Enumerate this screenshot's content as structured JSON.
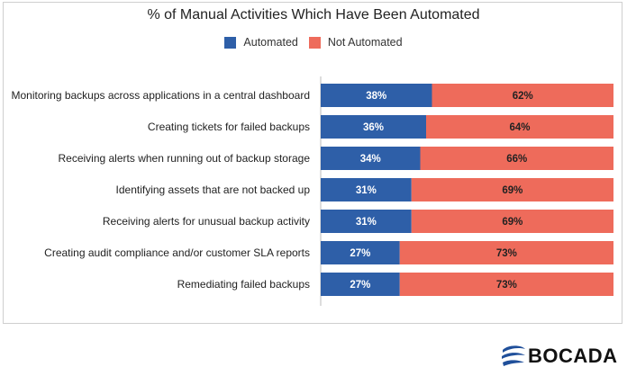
{
  "chart_data": {
    "type": "bar",
    "stacked": true,
    "orientation": "horizontal",
    "title": "% of Manual Activities Which Have Been Automated",
    "categories": [
      "Monitoring backups across applications in a central dashboard",
      "Creating tickets for failed backups",
      "Receiving alerts when running out of backup storage",
      "Identifying assets that are not backed up",
      "Receiving alerts for unusual backup activity",
      "Creating audit compliance and/or customer SLA reports",
      "Remediating failed backups"
    ],
    "series": [
      {
        "name": "Automated",
        "color": "#2e5fa8",
        "values": [
          38,
          36,
          34,
          31,
          31,
          27,
          27
        ]
      },
      {
        "name": "Not Automated",
        "color": "#ee6b5b",
        "values": [
          62,
          64,
          66,
          69,
          69,
          73,
          73
        ]
      }
    ],
    "value_suffix": "%",
    "xlim": [
      0,
      100
    ],
    "legend": "top-center",
    "grid": false
  },
  "logo": {
    "text": "BOCADA"
  }
}
